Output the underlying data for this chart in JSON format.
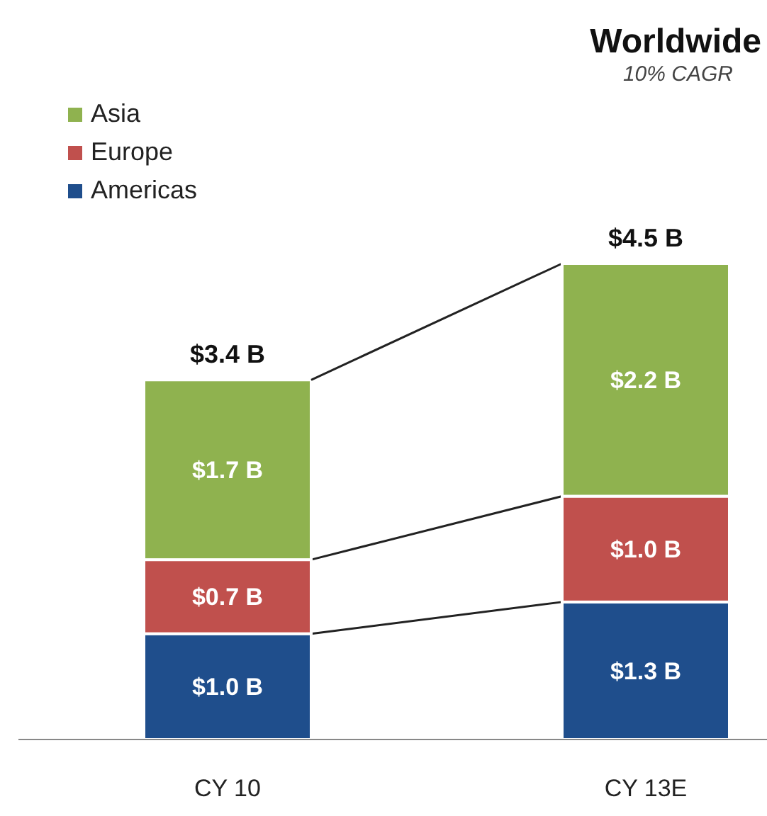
{
  "chart_data": {
    "type": "bar",
    "title": "Worldwide",
    "subtitle": "10% CAGR",
    "stacked": true,
    "categories": [
      "CY 10",
      "CY 13E"
    ],
    "series": [
      {
        "name": "Americas",
        "color": "#1f4e8c",
        "values": [
          1.0,
          1.3
        ],
        "value_labels": [
          "$1.0 B",
          "$1.3 B"
        ]
      },
      {
        "name": "Europe",
        "color": "#c0504d",
        "values": [
          0.7,
          1.0
        ],
        "value_labels": [
          "$0.7 B",
          "$1.0 B"
        ]
      },
      {
        "name": "Asia",
        "color": "#8fb24f",
        "values": [
          1.7,
          2.2
        ],
        "value_labels": [
          "$1.7 B",
          "$2.2 B"
        ]
      }
    ],
    "totals": [
      "$3.4 B",
      "$4.5 B"
    ],
    "legend": "top left",
    "grid": false
  }
}
